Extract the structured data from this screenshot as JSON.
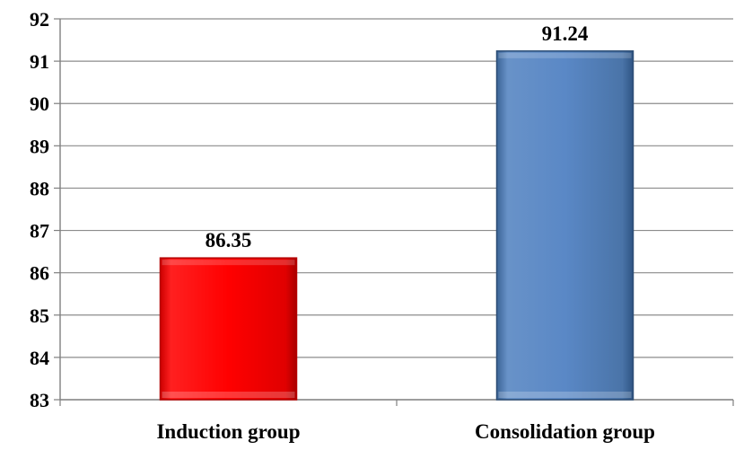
{
  "chart_data": {
    "type": "bar",
    "categories": [
      "Induction group",
      "Consolidation group"
    ],
    "values": [
      86.35,
      91.24
    ],
    "data_labels": [
      "86.35",
      "91.24"
    ],
    "title": "",
    "xlabel": "",
    "ylabel": "",
    "ylim": [
      83,
      92
    ],
    "yticks": [
      "83",
      "84",
      "85",
      "86",
      "87",
      "88",
      "89",
      "90",
      "91",
      "92"
    ],
    "grid": true,
    "legend": "none",
    "colors": {
      "bars": [
        "#ff0000",
        "#4f81bd"
      ],
      "bar_edges": [
        "#b50000",
        "#2c4d75"
      ],
      "grid": "#8c8c8c",
      "axis": "#7f7f7f"
    }
  }
}
